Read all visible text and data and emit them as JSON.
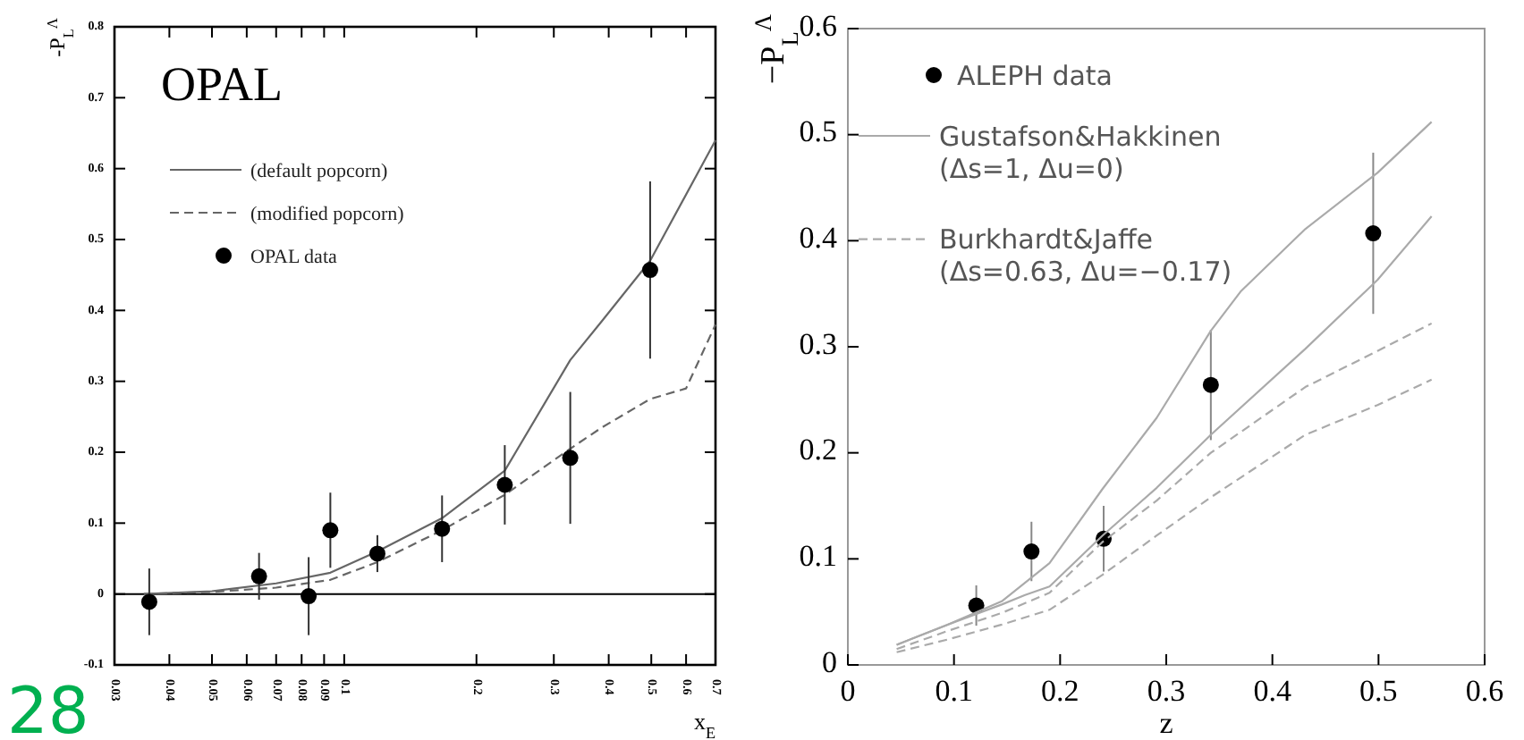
{
  "chart_data": [
    {
      "type": "line",
      "title": "OPAL",
      "xlabel": "x$_{E}$",
      "ylabel": "-P$_{L}$$^{Λ}$",
      "log": "x",
      "xlim": [
        0.03,
        0.7
      ],
      "ylim": [
        -0.1,
        0.8
      ],
      "xticks": [
        0.03,
        0.04,
        0.05,
        0.06,
        0.07,
        0.08,
        0.09,
        0.1,
        0.2,
        0.3,
        0.4,
        0.5,
        0.6,
        0.7
      ],
      "yticks": [
        -0.1,
        0,
        0.1,
        0.2,
        0.3,
        0.4,
        0.5,
        0.6,
        0.7,
        0.8
      ],
      "grid": false,
      "legend": "top left",
      "ref_lines": [
        {
          "axis": "y",
          "value": 0,
          "color": "#000000"
        }
      ],
      "annotations": [
        "28"
      ],
      "series": [
        {
          "name": "(default popcorn)",
          "color": "#666666",
          "line_style": "solid",
          "x": [
            0.035,
            0.05,
            0.07,
            0.093,
            0.119,
            0.167,
            0.232,
            0.327,
            0.386,
            0.497,
            0.7
          ],
          "values": [
            0,
            0.004,
            0.015,
            0.03,
            0.06,
            0.107,
            0.174,
            0.33,
            0.385,
            0.47,
            0.64
          ]
        },
        {
          "name": "(modified popcorn)",
          "color": "#666666",
          "line_style": "dashed",
          "x": [
            0.035,
            0.05,
            0.07,
            0.093,
            0.119,
            0.167,
            0.232,
            0.327,
            0.386,
            0.497,
            0.6,
            0.7
          ],
          "values": [
            0,
            0.003,
            0.009,
            0.02,
            0.045,
            0.09,
            0.14,
            0.205,
            0.235,
            0.275,
            0.29,
            0.38
          ]
        },
        {
          "type": "scatter",
          "name": "OPAL data",
          "color": "#000000",
          "marker": "circle",
          "x": [
            0.036,
            0.064,
            0.083,
            0.093,
            0.119,
            0.167,
            0.232,
            0.327,
            0.497
          ],
          "values": [
            -0.011,
            0.025,
            -0.003,
            0.09,
            0.057,
            0.092,
            0.154,
            0.192,
            0.457
          ],
          "errors": [
            0.047,
            0.033,
            0.055,
            0.053,
            0.026,
            0.047,
            0.056,
            0.093,
            0.125
          ]
        }
      ]
    },
    {
      "type": "line",
      "xlabel": "z",
      "ylabel": "−P$_{L}$$^{Λ}$",
      "xlim": [
        0,
        0.6
      ],
      "ylim": [
        0,
        0.6
      ],
      "xticks": [
        0,
        0.1,
        0.2,
        0.3,
        0.4,
        0.5,
        0.6
      ],
      "yticks": [
        0,
        0.1,
        0.2,
        0.3,
        0.4,
        0.5,
        0.6
      ],
      "grid": false,
      "legend": "top left",
      "series": [
        {
          "type": "scatter",
          "name": "ALEPH data",
          "color": "#000000",
          "marker": "circle",
          "x": [
            0.121,
            0.173,
            0.241,
            0.342,
            0.495
          ],
          "values": [
            0.056,
            0.107,
            0.119,
            0.264,
            0.407
          ],
          "errors": [
            0.019,
            0.028,
            0.031,
            0.052,
            0.076
          ]
        },
        {
          "name": "Gustafson&Hakkinen (Δs=1, Δu=0)",
          "color": "#aaaaaa",
          "line_style": "solid",
          "x": [
            0.046,
            0.094,
            0.145,
            0.19,
            0.24,
            0.291,
            0.342,
            0.37,
            0.431,
            0.499,
            0.55
          ],
          "values": [
            0.019,
            0.038,
            0.06,
            0.096,
            0.166,
            0.233,
            0.315,
            0.352,
            0.411,
            0.464,
            0.512
          ]
        },
        {
          "color": "#aaaaaa",
          "line_style": "solid",
          "x": [
            0.046,
            0.094,
            0.145,
            0.167,
            0.19,
            0.24,
            0.291,
            0.342,
            0.431,
            0.499,
            0.55
          ],
          "values": [
            0.019,
            0.038,
            0.057,
            0.066,
            0.074,
            0.122,
            0.167,
            0.217,
            0.298,
            0.363,
            0.423
          ]
        },
        {
          "name": "Burkhardt&Jaffe (Δs=0.63, Δu=−0.17)",
          "color": "#aaaaaa",
          "line_style": "dashed",
          "x": [
            0.046,
            0.094,
            0.145,
            0.19,
            0.24,
            0.291,
            0.342,
            0.431,
            0.499,
            0.55
          ],
          "values": [
            0.015,
            0.032,
            0.049,
            0.068,
            0.116,
            0.155,
            0.2,
            0.262,
            0.296,
            0.322
          ]
        },
        {
          "color": "#aaaaaa",
          "line_style": "dashed",
          "x": [
            0.046,
            0.094,
            0.145,
            0.19,
            0.24,
            0.291,
            0.342,
            0.431,
            0.499,
            0.55
          ],
          "values": [
            0.012,
            0.024,
            0.038,
            0.052,
            0.085,
            0.122,
            0.158,
            0.217,
            0.245,
            0.269
          ]
        }
      ]
    }
  ]
}
